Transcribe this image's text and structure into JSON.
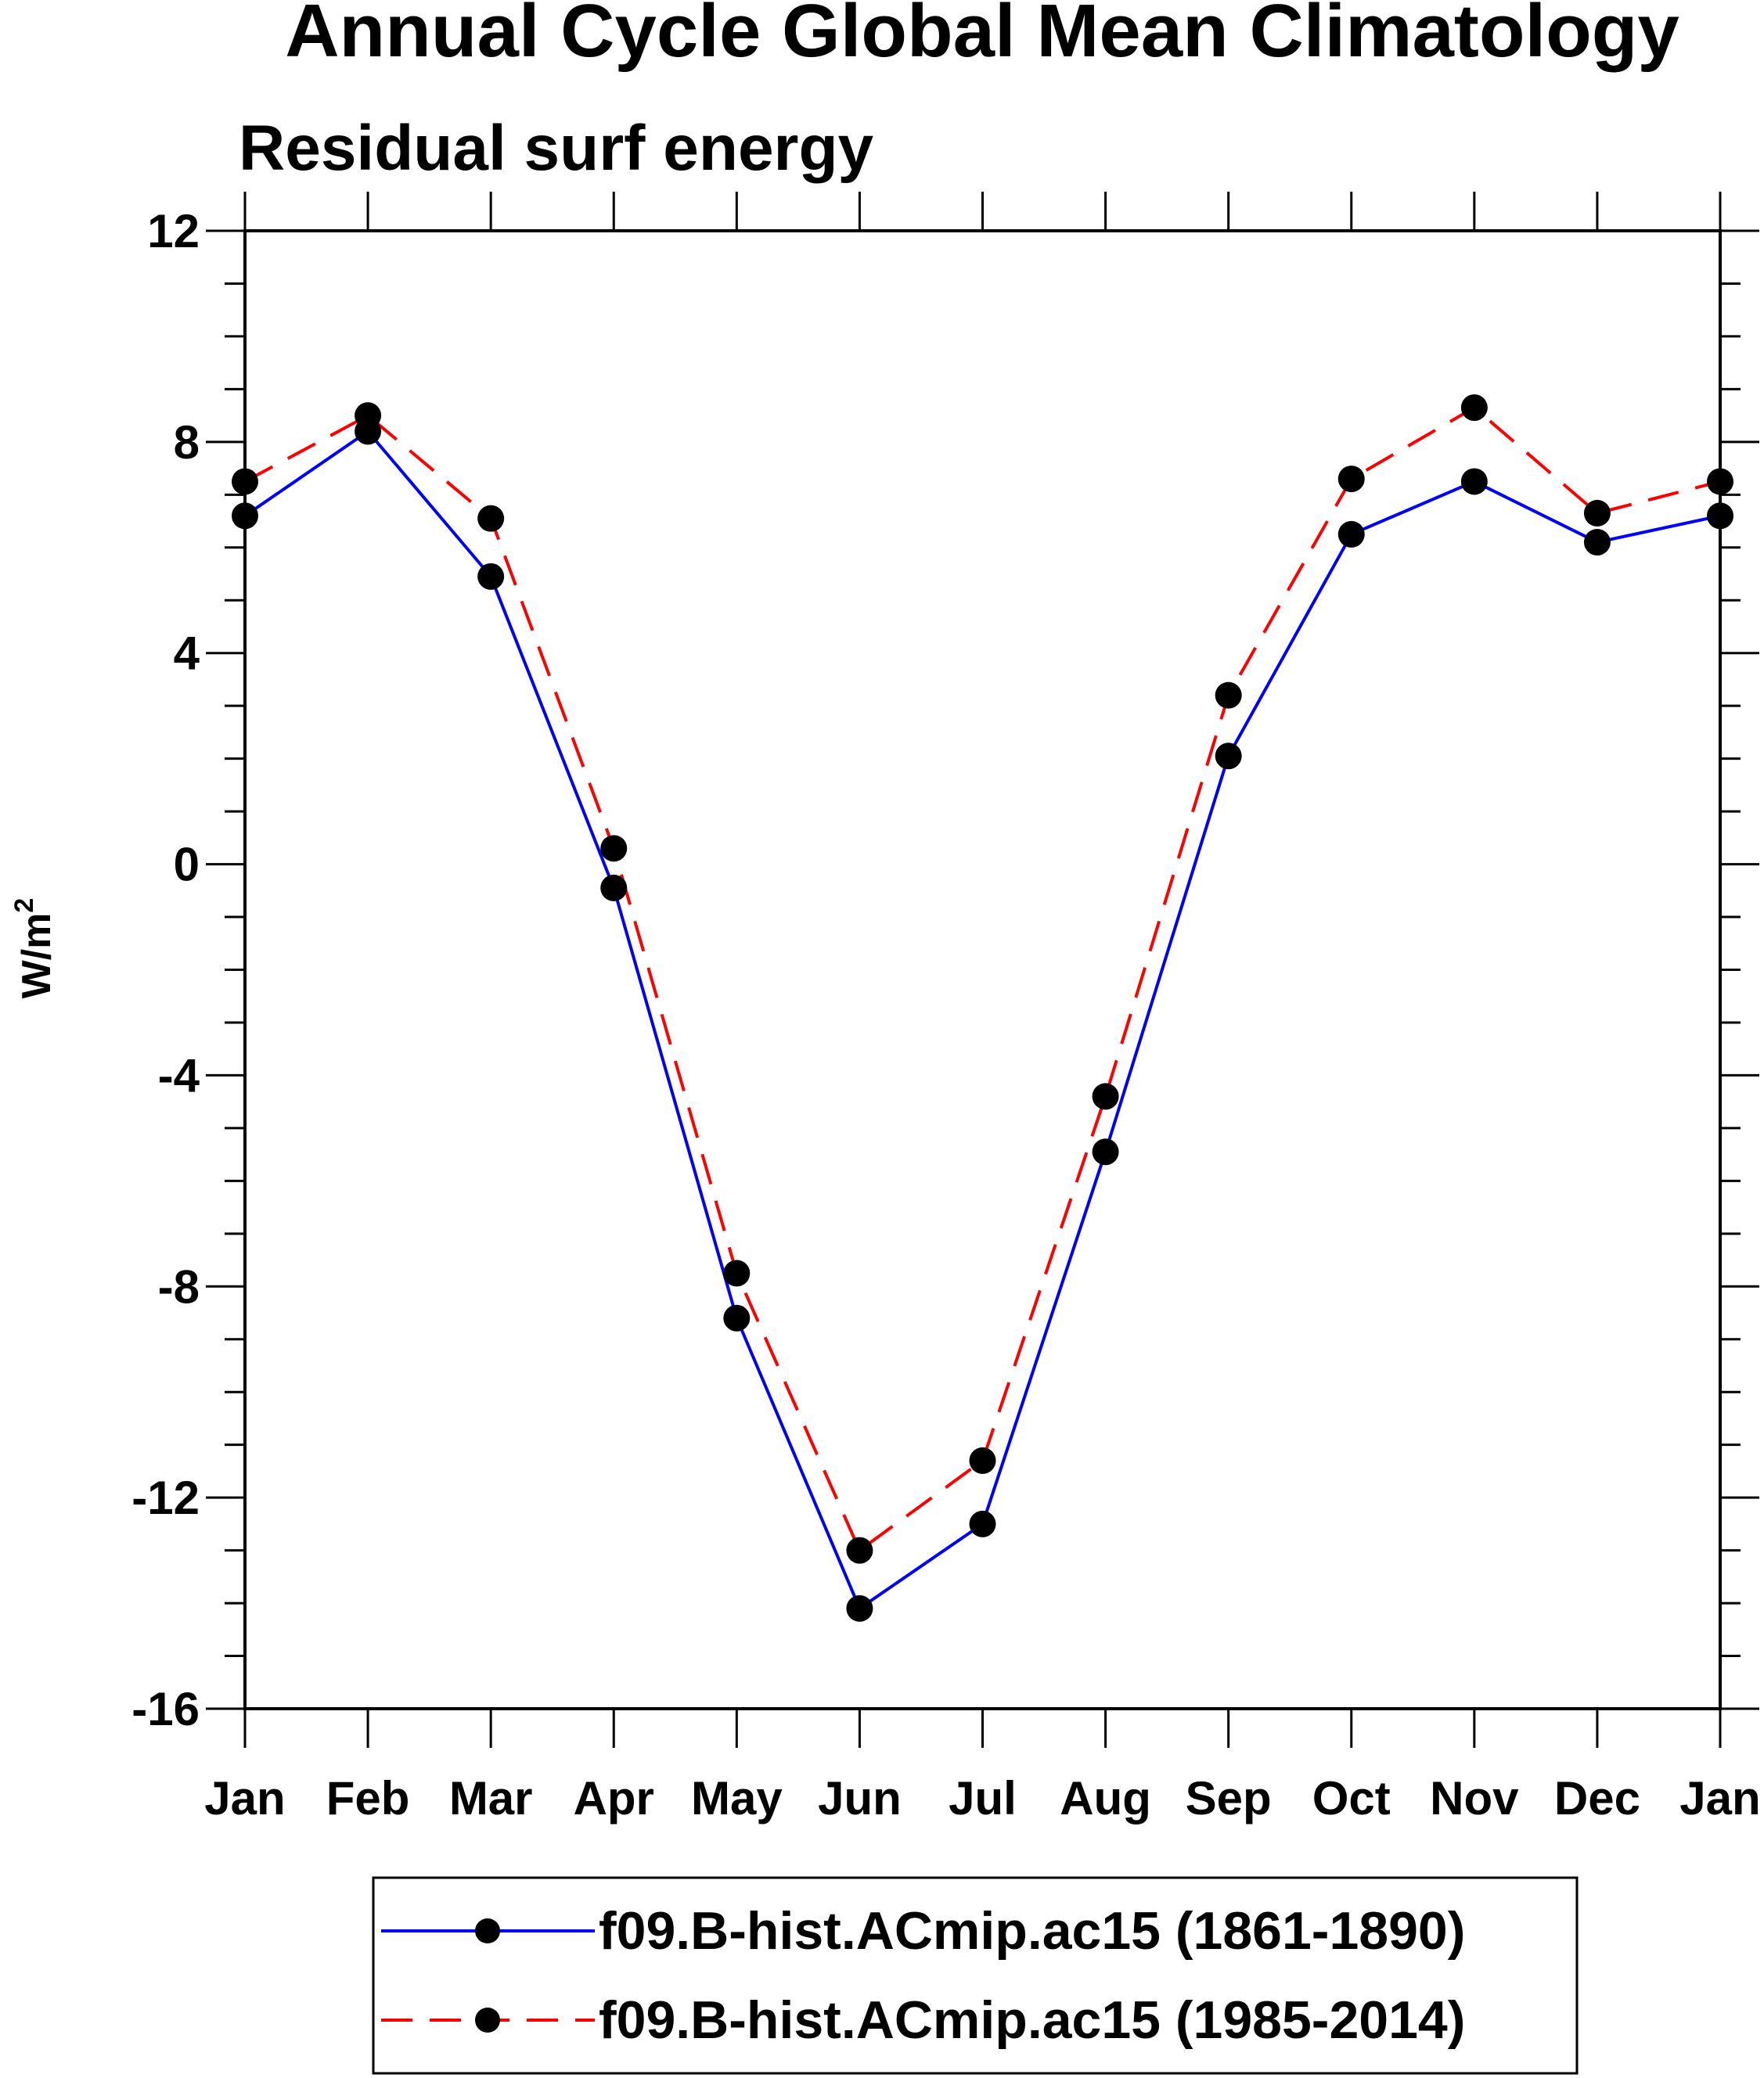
{
  "chart_data": {
    "type": "line",
    "title": "Annual Cycle Global Mean Climatology",
    "subtitle": "Residual surf energy",
    "ylabel": "W/m",
    "ylabel_superscript": "2",
    "xlabel": "",
    "categories": [
      "Jan",
      "Feb",
      "Mar",
      "Apr",
      "May",
      "Jun",
      "Jul",
      "Aug",
      "Sep",
      "Oct",
      "Nov",
      "Dec",
      "Jan"
    ],
    "yticks": [
      12,
      8,
      4,
      0,
      -4,
      -8,
      -12,
      -16
    ],
    "ytick_labels": [
      "12",
      "8",
      "4",
      "0",
      "-4",
      "-8",
      "-12",
      "-16"
    ],
    "ylim": [
      -16,
      12
    ],
    "grid": false,
    "legend_position": "bottom",
    "series": [
      {
        "name": "f09.B-hist.ACmip.ac15 (1861-1890)",
        "color": "#0000ff",
        "style": "solid",
        "marker": "filled-circle",
        "values": [
          6.6,
          8.2,
          5.45,
          -0.45,
          -8.6,
          -14.1,
          -12.5,
          -5.45,
          2.05,
          6.25,
          7.25,
          6.1,
          6.6
        ]
      },
      {
        "name": "f09.B-hist.ACmip.ac15 (1985-2014)",
        "color": "#ff0000",
        "style": "dashed",
        "marker": "filled-circle",
        "values": [
          7.25,
          8.5,
          6.55,
          0.3,
          -7.75,
          -13.0,
          -11.3,
          -4.4,
          3.2,
          7.3,
          8.65,
          6.65,
          7.25
        ]
      }
    ]
  }
}
